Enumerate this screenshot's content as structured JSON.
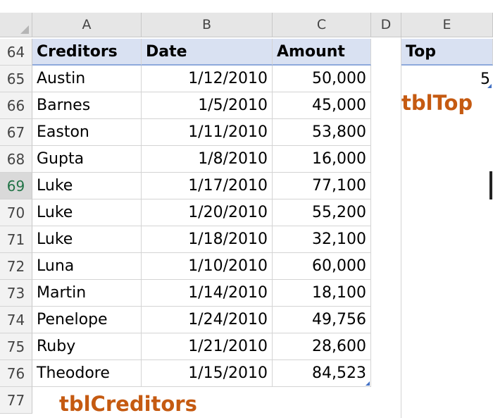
{
  "columns": [
    "A",
    "B",
    "C",
    "D",
    "E"
  ],
  "row_numbers": [
    "64",
    "65",
    "66",
    "67",
    "68",
    "69",
    "70",
    "71",
    "72",
    "73",
    "74",
    "75",
    "76",
    "77"
  ],
  "selected_row": "69",
  "creditors_table": {
    "name": "tblCreditors",
    "headers": [
      "Creditors",
      "Date",
      "Amount"
    ],
    "rows": [
      [
        "Austin",
        "1/12/2010",
        "50,000"
      ],
      [
        "Barnes",
        "1/5/2010",
        "45,000"
      ],
      [
        "Easton",
        "1/11/2010",
        "53,800"
      ],
      [
        "Gupta",
        "1/8/2010",
        "16,000"
      ],
      [
        "Luke",
        "1/17/2010",
        "77,100"
      ],
      [
        "Luke",
        "1/20/2010",
        "55,200"
      ],
      [
        "Luke",
        "1/18/2010",
        "32,100"
      ],
      [
        "Luna",
        "1/10/2010",
        "60,000"
      ],
      [
        "Martin",
        "1/14/2010",
        "18,100"
      ],
      [
        "Penelope",
        "1/24/2010",
        "49,756"
      ],
      [
        "Ruby",
        "1/21/2010",
        "28,600"
      ],
      [
        "Theodore",
        "1/15/2010",
        "84,523"
      ]
    ]
  },
  "top_table": {
    "name": "tblTop",
    "header": "Top",
    "value": "5"
  },
  "colors": {
    "table_header_bg": "#d9e1f2",
    "table_label": "#c55a11",
    "grid": "#d4d4d4"
  }
}
